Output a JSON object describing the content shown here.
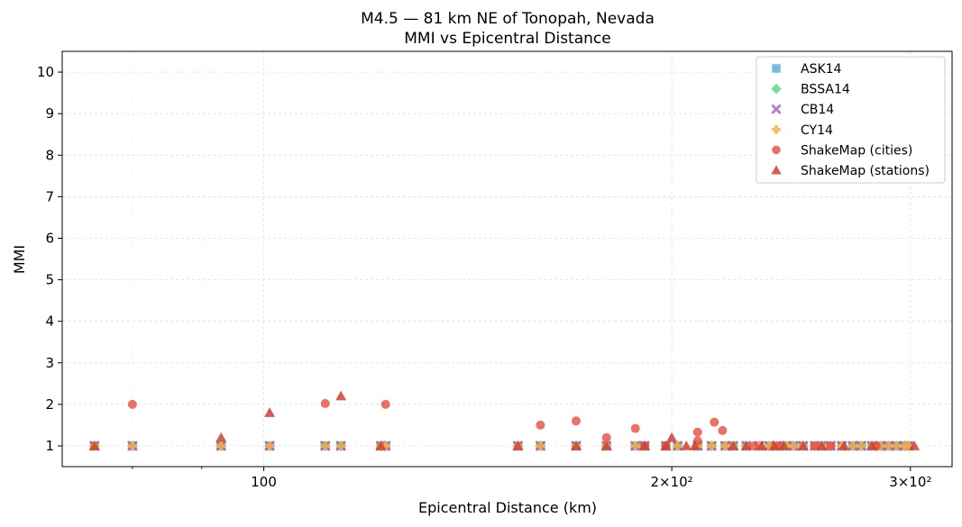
{
  "chart_data": {
    "type": "scatter",
    "title": "M4.5 — 81 km NE of Tonopah, Nevada",
    "subtitle": "MMI vs Epicentral Distance",
    "xlabel": "Epicentral Distance (km)",
    "ylabel": "MMI",
    "xscale": "log",
    "xlim": [
      71,
      322
    ],
    "ylim": [
      0.5,
      10.5
    ],
    "xticks": [
      {
        "value": 100,
        "label": "100"
      },
      {
        "value": 200,
        "label": "2×10²"
      },
      {
        "value": 300,
        "label": "3×10²"
      }
    ],
    "yticks": [
      1,
      2,
      3,
      4,
      5,
      6,
      7,
      8,
      9,
      10
    ],
    "grid": true,
    "legend_position": "top-right",
    "series": [
      {
        "name": "ASK14",
        "marker": "square",
        "color": "#5DADE2",
        "x": [
          75,
          80,
          93,
          101,
          111,
          114,
          122,
          123,
          154,
          160,
          170,
          179,
          188,
          191,
          198,
          202,
          209,
          214,
          219,
          222,
          227,
          232,
          236,
          239,
          243,
          246,
          250,
          255,
          258,
          262,
          267,
          272,
          276,
          281,
          285,
          289,
          293,
          297,
          299
        ],
        "y": [
          1,
          1,
          1,
          1,
          1,
          1,
          1,
          1,
          1,
          1,
          1,
          1,
          1,
          1,
          1,
          1,
          1,
          1,
          1,
          1,
          1,
          1,
          1,
          1,
          1,
          1,
          1,
          1,
          1,
          1,
          1,
          1,
          1,
          1,
          1,
          1,
          1,
          1,
          1
        ]
      },
      {
        "name": "BSSA14",
        "marker": "diamond",
        "color": "#58D68D",
        "x": [
          75,
          80,
          93,
          101,
          111,
          114,
          122,
          123,
          154,
          160,
          170,
          179,
          188,
          191,
          198,
          202,
          209,
          214,
          219,
          222,
          227,
          232,
          236,
          239,
          243,
          246,
          250,
          255,
          258,
          262,
          267,
          272,
          276,
          281,
          285,
          289,
          293,
          297,
          299
        ],
        "y": [
          1,
          1,
          1,
          1,
          1,
          1,
          1,
          1,
          1,
          1,
          1,
          1,
          1,
          1,
          1,
          1,
          1,
          1,
          1,
          1,
          1,
          1,
          1,
          1,
          1,
          1,
          1,
          1,
          1,
          1,
          1,
          1,
          1,
          1,
          1,
          1,
          1,
          1,
          1
        ]
      },
      {
        "name": "CB14",
        "marker": "x",
        "color": "#A569BD",
        "x": [
          75,
          80,
          93,
          101,
          111,
          114,
          122,
          123,
          154,
          160,
          170,
          179,
          188,
          191,
          198,
          202,
          209,
          214,
          219,
          222,
          227,
          232,
          236,
          239,
          243,
          246,
          250,
          255,
          258,
          262,
          267,
          272,
          276,
          281,
          285,
          289,
          293,
          297,
          299
        ],
        "y": [
          1,
          1,
          1,
          1,
          1,
          1,
          1,
          1,
          1,
          1,
          1,
          1,
          1,
          1,
          1,
          1,
          1,
          1,
          1,
          1,
          1,
          1,
          1,
          1,
          1,
          1,
          1,
          1,
          1,
          1,
          1,
          1,
          1,
          1,
          1,
          1,
          1,
          1,
          1
        ]
      },
      {
        "name": "CY14",
        "marker": "plus",
        "color": "#F5B041",
        "x": [
          75,
          80,
          93,
          101,
          111,
          114,
          122,
          123,
          154,
          160,
          170,
          179,
          188,
          191,
          198,
          202,
          209,
          214,
          219,
          222,
          227,
          232,
          236,
          239,
          243,
          246,
          250,
          255,
          258,
          262,
          267,
          272,
          276,
          281,
          285,
          289,
          293,
          297,
          299
        ],
        "y": [
          1,
          1,
          1,
          1,
          1,
          1,
          1,
          1,
          1,
          1,
          1,
          1,
          1,
          1,
          1,
          1,
          1,
          1,
          1,
          1,
          1,
          1,
          1,
          1,
          1,
          1,
          1,
          1,
          1,
          1,
          1,
          1,
          1,
          1,
          1,
          1,
          1,
          1,
          1
        ]
      },
      {
        "name": "ShakeMap (cities)",
        "marker": "circle",
        "color": "#E74C3C",
        "x": [
          80,
          111,
          123,
          160,
          170,
          179,
          188,
          191,
          198,
          209,
          209,
          215,
          218,
          230,
          240,
          255,
          262,
          283
        ],
        "y": [
          2.0,
          2.02,
          2.0,
          1.5,
          1.6,
          1.2,
          1.42,
          1.0,
          1.0,
          1.33,
          1.12,
          1.57,
          1.37,
          1.0,
          1.0,
          1.0,
          1.0,
          1.0
        ]
      },
      {
        "name": "ShakeMap (stations)",
        "marker": "triangle",
        "color": "#CB4335",
        "x": [
          75,
          93,
          101,
          114,
          122,
          154,
          170,
          179,
          191,
          198,
          200,
          205,
          208,
          222,
          227,
          233,
          238,
          242,
          250,
          258,
          268,
          281,
          302
        ],
        "y": [
          1.0,
          1.2,
          1.8,
          2.2,
          1.0,
          1.0,
          1.0,
          1.0,
          1.0,
          1.0,
          1.2,
          1.0,
          1.0,
          1.0,
          1.0,
          1.0,
          1.0,
          1.0,
          1.0,
          1.0,
          1.0,
          1.0,
          1.0
        ]
      }
    ]
  }
}
